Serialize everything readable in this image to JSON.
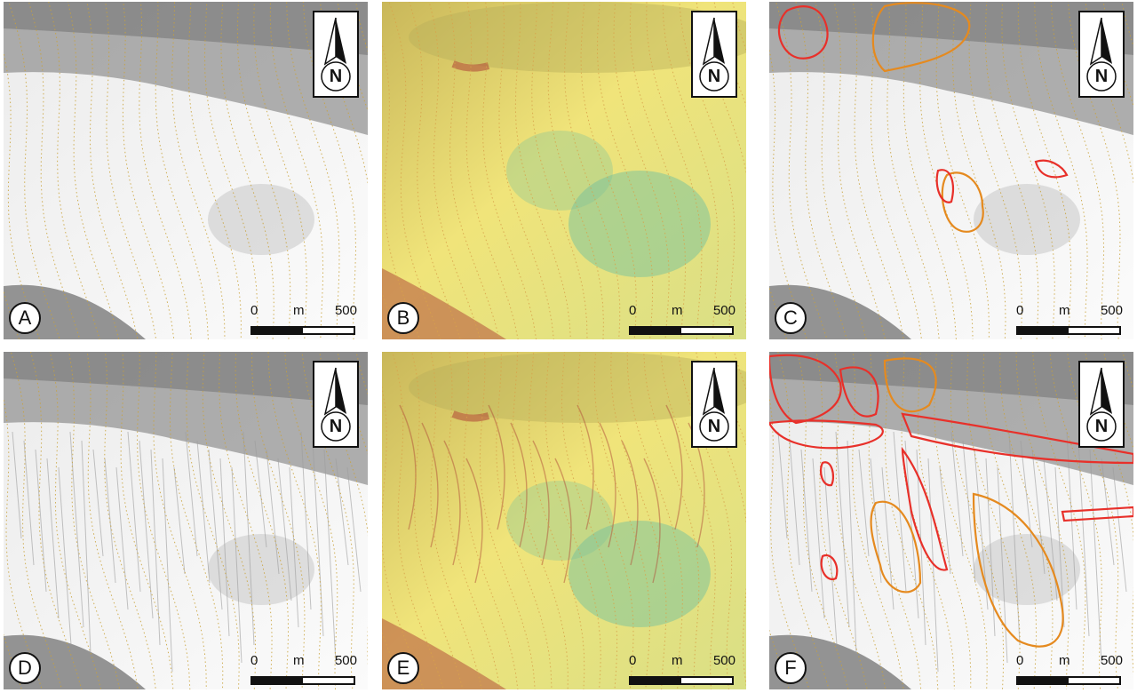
{
  "panels": [
    {
      "label": "A",
      "style": "hillshade-smooth"
    },
    {
      "label": "B",
      "style": "slope-smooth"
    },
    {
      "label": "C",
      "style": "hillshade-smooth-mapped"
    },
    {
      "label": "D",
      "style": "hillshade-detailed"
    },
    {
      "label": "E",
      "style": "slope-detailed"
    },
    {
      "label": "F",
      "style": "hillshade-detailed-mapped"
    }
  ],
  "north_arrow": {
    "letter": "N",
    "icon": "north-arrow-icon"
  },
  "scale_bar": {
    "start": "0",
    "unit": "m",
    "end": "500"
  },
  "colors": {
    "landslide_outline_red": "#e8302a",
    "landslide_outline_orange": "#e58a1f",
    "contour": "#c9a23a",
    "slope_low": "#7fc49b",
    "slope_mid": "#f0e47a",
    "slope_high": "#b2503a"
  }
}
